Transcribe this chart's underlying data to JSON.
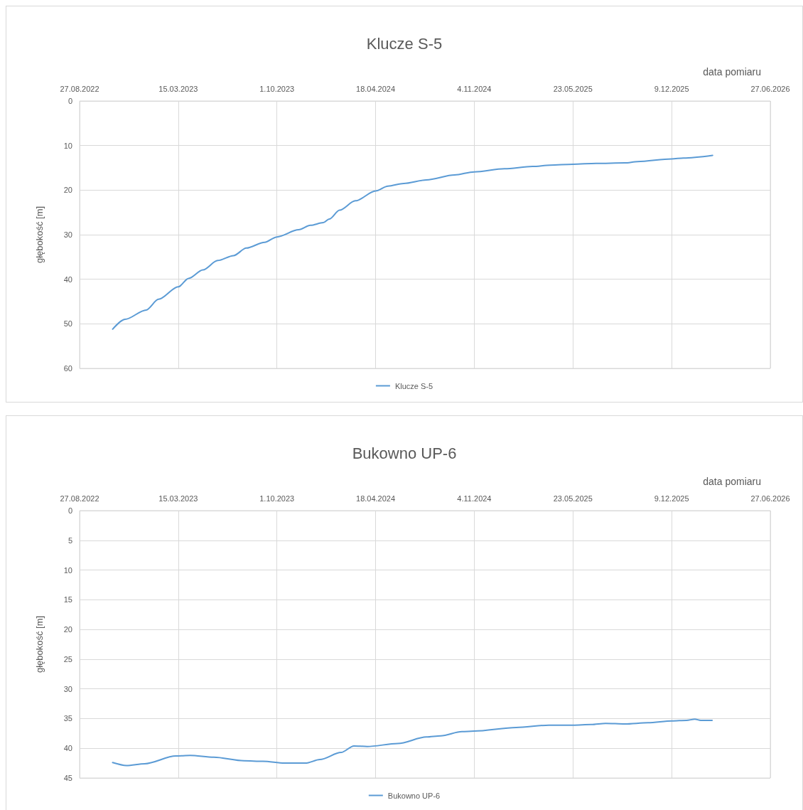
{
  "chart_data": [
    {
      "type": "line",
      "title": "Klucze S-5",
      "xlabel": "data pomiaru",
      "ylabel": "głębokość [m]",
      "legend": "bottom",
      "grid": true,
      "x": [
        "2022-11-02",
        "2022-11-27",
        "2023-01-09",
        "2023-02-03",
        "2023-03-15",
        "2023-04-05",
        "2023-05-04",
        "2023-06-03",
        "2023-07-05",
        "2023-07-31",
        "2023-09-06",
        "2023-10-01",
        "2023-11-14",
        "2023-12-08",
        "2024-01-03",
        "2024-01-15",
        "2024-02-05",
        "2024-03-08",
        "2024-04-18",
        "2024-05-13",
        "2024-06-14",
        "2024-07-30",
        "2024-09-25",
        "2024-11-04",
        "2025-01-04",
        "2025-03-02",
        "2025-04-07",
        "2025-05-23",
        "2025-07-09",
        "2025-09-05",
        "2025-10-01",
        "2025-12-09",
        "2026-01-02",
        "2026-03-02"
      ],
      "series": [
        {
          "name": "Klucze S-5",
          "color": "#5b9bd5",
          "values": [
            51.2,
            49.0,
            46.9,
            44.5,
            41.7,
            39.8,
            37.9,
            35.8,
            34.7,
            33.0,
            31.7,
            30.5,
            28.9,
            27.9,
            27.3,
            26.5,
            24.5,
            22.4,
            20.2,
            19.1,
            18.5,
            17.7,
            16.6,
            15.9,
            15.2,
            14.7,
            14.4,
            14.2,
            14.0,
            13.9,
            13.6,
            13.0,
            12.8,
            12.2
          ]
        }
      ],
      "xlim": [
        "2022-08-27",
        "2026-06-27"
      ],
      "xticks": [
        {
          "value": "2022-08-27",
          "label": "27.08.2022"
        },
        {
          "value": "2023-03-15",
          "label": "15.03.2023"
        },
        {
          "value": "2023-10-01",
          "label": "1.10.2023"
        },
        {
          "value": "2024-04-18",
          "label": "18.04.2024"
        },
        {
          "value": "2024-11-04",
          "label": "4.11.2024"
        },
        {
          "value": "2025-05-23",
          "label": "23.05.2025"
        },
        {
          "value": "2025-12-09",
          "label": "9.12.2025"
        },
        {
          "value": "2026-06-27",
          "label": "27.06.2026"
        }
      ],
      "ylim": [
        60,
        0
      ],
      "yticks": [
        0,
        10,
        20,
        30,
        40,
        50,
        60
      ]
    },
    {
      "type": "line",
      "title": "Bukowno UP-6",
      "xlabel": "data pomiaru",
      "ylabel": "głębokość [m]",
      "legend": "bottom",
      "grid": true,
      "x": [
        "2022-11-02",
        "2022-11-30",
        "2023-01-06",
        "2023-03-10",
        "2023-04-08",
        "2023-05-26",
        "2023-07-26",
        "2023-09-03",
        "2023-10-16",
        "2023-11-28",
        "2023-12-27",
        "2024-02-08",
        "2024-03-05",
        "2024-04-01",
        "2024-06-02",
        "2024-07-30",
        "2024-08-28",
        "2024-10-10",
        "2024-11-04",
        "2025-01-28",
        "2025-04-04",
        "2025-05-23",
        "2025-06-29",
        "2025-07-28",
        "2025-09-05",
        "2025-10-22",
        "2025-12-10",
        "2026-01-08",
        "2026-01-25",
        "2026-02-06",
        "2026-03-01"
      ],
      "series": [
        {
          "name": "Bukowno UP-6",
          "color": "#5b9bd5",
          "values": [
            42.4,
            42.9,
            42.6,
            41.3,
            41.2,
            41.5,
            42.1,
            42.2,
            42.5,
            42.5,
            41.9,
            40.7,
            39.6,
            39.7,
            39.2,
            38.1,
            37.9,
            37.2,
            37.1,
            36.5,
            36.1,
            36.1,
            36.0,
            35.8,
            35.9,
            35.7,
            35.4,
            35.3,
            35.1,
            35.3,
            35.3
          ]
        }
      ],
      "xlim": [
        "2022-08-27",
        "2026-06-27"
      ],
      "xticks": [
        {
          "value": "2022-08-27",
          "label": "27.08.2022"
        },
        {
          "value": "2023-03-15",
          "label": "15.03.2023"
        },
        {
          "value": "2023-10-01",
          "label": "1.10.2023"
        },
        {
          "value": "2024-04-18",
          "label": "18.04.2024"
        },
        {
          "value": "2024-11-04",
          "label": "4.11.2024"
        },
        {
          "value": "2025-05-23",
          "label": "23.05.2025"
        },
        {
          "value": "2025-12-09",
          "label": "9.12.2025"
        },
        {
          "value": "2026-06-27",
          "label": "27.06.2026"
        }
      ],
      "ylim": [
        45,
        0
      ],
      "yticks": [
        0,
        5,
        10,
        15,
        20,
        25,
        30,
        35,
        40,
        45
      ]
    }
  ]
}
